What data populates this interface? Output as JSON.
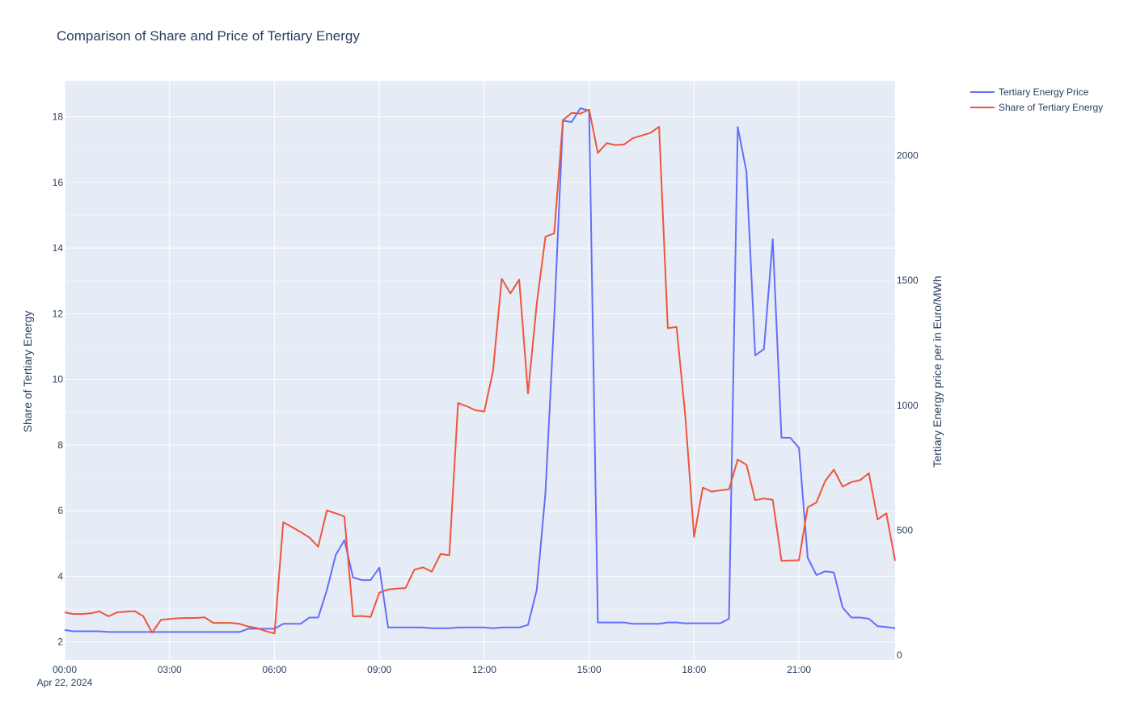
{
  "chart_data": {
    "type": "line",
    "title": "Comparison of Share and Price of Tertiary Energy",
    "xlabel": "",
    "x_date_label": "Apr 22, 2024",
    "x_tick_labels": [
      "00:00",
      "03:00",
      "06:00",
      "09:00",
      "12:00",
      "15:00",
      "18:00",
      "21:00"
    ],
    "x_tick_hours": [
      0,
      3,
      6,
      9,
      12,
      15,
      18,
      21
    ],
    "xlim_hours": [
      0,
      23.75
    ],
    "y_left": {
      "label": "Share of Tertiary Energy",
      "range": [
        1.45,
        19.1
      ],
      "ticks": [
        2,
        4,
        6,
        8,
        10,
        12,
        14,
        16,
        18
      ]
    },
    "y_right": {
      "label": "Tertiary Energy price per in Euro/MWh",
      "range": [
        -20,
        2300
      ],
      "ticks": [
        0,
        500,
        1000,
        1500,
        2000
      ]
    },
    "grid": true,
    "legend_position": "top-right",
    "colors": {
      "price": "#636efa",
      "share": "#EF553B",
      "plot_bg": "#E5ECF6",
      "grid": "#ffffff",
      "text": "#2a3f5f"
    },
    "series": [
      {
        "name": "Tertiary Energy Price",
        "axis": "right",
        "color": "#636efa",
        "x_hours": [
          0,
          0.25,
          0.5,
          0.75,
          1,
          1.25,
          1.5,
          1.75,
          2,
          2.25,
          2.5,
          2.75,
          3,
          3.25,
          3.5,
          3.75,
          4,
          4.25,
          4.5,
          4.75,
          5,
          5.25,
          5.5,
          5.75,
          6,
          6.25,
          6.5,
          6.75,
          7,
          7.25,
          7.5,
          7.75,
          8,
          8.25,
          8.5,
          8.75,
          9,
          9.25,
          9.5,
          9.75,
          10,
          10.25,
          10.5,
          10.75,
          11,
          11.25,
          11.5,
          11.75,
          12,
          12.25,
          12.5,
          12.75,
          13,
          13.25,
          13.5,
          13.75,
          14,
          14.25,
          14.5,
          14.75,
          15,
          15.25,
          15.5,
          15.75,
          16,
          16.25,
          16.5,
          16.75,
          17,
          17.25,
          17.5,
          17.75,
          18,
          18.25,
          18.5,
          18.75,
          19,
          19.25,
          19.5,
          19.75,
          20,
          20.25,
          20.5,
          20.75,
          21,
          21.25,
          21.5,
          21.75,
          22,
          22.25,
          22.5,
          22.75,
          23,
          23.25,
          23.5,
          23.75
        ],
        "values": [
          100,
          95,
          95,
          95,
          95,
          92,
          92,
          92,
          92,
          92,
          92,
          92,
          92,
          92,
          92,
          92,
          92,
          92,
          92,
          92,
          92,
          105,
          105,
          105,
          105,
          125,
          125,
          125,
          150,
          150,
          260,
          400,
          460,
          310,
          300,
          300,
          350,
          110,
          110,
          110,
          110,
          110,
          107,
          107,
          107,
          110,
          110,
          110,
          110,
          107,
          110,
          110,
          110,
          120,
          260,
          650,
          1350,
          2140,
          2135,
          2190,
          2180,
          130,
          130,
          130,
          130,
          125,
          125,
          125,
          125,
          130,
          130,
          127,
          127,
          127,
          127,
          127,
          145,
          2115,
          1935,
          1200,
          1225,
          1665,
          870,
          870,
          830,
          390,
          320,
          335,
          330,
          190,
          150,
          150,
          145,
          115,
          112,
          107
        ],
        "unit": "Euro/MWh"
      },
      {
        "name": "Share of Tertiary Energy",
        "axis": "left",
        "color": "#EF553B",
        "x_hours": [
          0,
          0.25,
          0.5,
          0.75,
          1,
          1.25,
          1.5,
          1.75,
          2,
          2.25,
          2.5,
          2.75,
          3,
          3.25,
          3.5,
          3.75,
          4,
          4.25,
          4.5,
          4.75,
          5,
          5.25,
          5.5,
          5.75,
          6,
          6.25,
          6.5,
          6.75,
          7,
          7.25,
          7.5,
          7.75,
          8,
          8.25,
          8.5,
          8.75,
          9,
          9.25,
          9.5,
          9.75,
          10,
          10.25,
          10.5,
          10.75,
          11,
          11.25,
          11.5,
          11.75,
          12,
          12.25,
          12.5,
          12.75,
          13,
          13.25,
          13.5,
          13.75,
          14,
          14.25,
          14.5,
          14.75,
          15,
          15.25,
          15.5,
          15.75,
          16,
          16.25,
          16.5,
          16.75,
          17,
          17.25,
          17.5,
          17.75,
          18,
          18.25,
          18.5,
          18.75,
          19,
          19.25,
          19.5,
          19.75,
          20,
          20.25,
          20.5,
          20.75,
          21,
          21.25,
          21.5,
          21.75,
          22,
          22.25,
          22.5,
          22.75,
          23,
          23.25,
          23.5,
          23.75
        ],
        "values": [
          2.9,
          2.85,
          2.85,
          2.87,
          2.93,
          2.78,
          2.9,
          2.92,
          2.94,
          2.78,
          2.28,
          2.67,
          2.7,
          2.72,
          2.73,
          2.73,
          2.75,
          2.58,
          2.58,
          2.58,
          2.55,
          2.47,
          2.42,
          2.33,
          2.26,
          5.65,
          5.5,
          5.35,
          5.18,
          4.9,
          6.01,
          5.92,
          5.82,
          2.78,
          2.79,
          2.76,
          3.5,
          3.6,
          3.62,
          3.64,
          4.2,
          4.27,
          4.14,
          4.68,
          4.64,
          9.28,
          9.18,
          9.06,
          9.02,
          10.25,
          13.07,
          12.62,
          13.04,
          9.57,
          12.3,
          14.35,
          14.45,
          17.9,
          18.12,
          18.1,
          18.22,
          16.9,
          17.2,
          17.14,
          17.16,
          17.35,
          17.43,
          17.51,
          17.7,
          11.56,
          11.6,
          8.9,
          5.2,
          6.7,
          6.58,
          6.62,
          6.65,
          7.56,
          7.4,
          6.32,
          6.37,
          6.33,
          4.47,
          4.48,
          4.49,
          6.1,
          6.25,
          6.9,
          7.25,
          6.73,
          6.87,
          6.93,
          7.14,
          5.73,
          5.92,
          4.47
        ],
        "unit": ""
      }
    ]
  }
}
